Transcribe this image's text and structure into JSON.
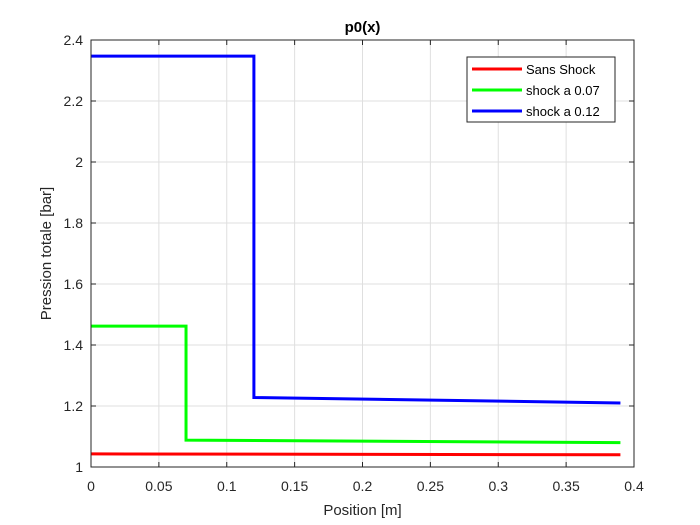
{
  "chart_data": {
    "type": "line",
    "title": "p0(x)",
    "xlabel": "Position [m]",
    "ylabel": "Pression totale [bar]",
    "xlim": [
      0,
      0.4
    ],
    "ylim": [
      1,
      2.4
    ],
    "x_ticks": [
      "0",
      "0.05",
      "0.1",
      "0.15",
      "0.2",
      "0.25",
      "0.3",
      "0.35",
      "0.4"
    ],
    "y_ticks": [
      "1",
      "1.2",
      "1.4",
      "1.6",
      "1.8",
      "2",
      "2.2",
      "2.4"
    ],
    "grid": true,
    "legend_position": "top-right",
    "series": [
      {
        "name": "Sans Shock",
        "color": "#ff0000",
        "points": [
          [
            0,
            1.043
          ],
          [
            0.39,
            1.04
          ]
        ]
      },
      {
        "name": "shock a 0.07",
        "color": "#00ff00",
        "points": [
          [
            0,
            1.462
          ],
          [
            0.07,
            1.462
          ],
          [
            0.07,
            1.088
          ],
          [
            0.39,
            1.08
          ]
        ]
      },
      {
        "name": "shock a 0.12",
        "color": "#0000ff",
        "points": [
          [
            0,
            2.347
          ],
          [
            0.12,
            2.347
          ],
          [
            0.12,
            1.228
          ],
          [
            0.39,
            1.21
          ]
        ]
      }
    ]
  }
}
